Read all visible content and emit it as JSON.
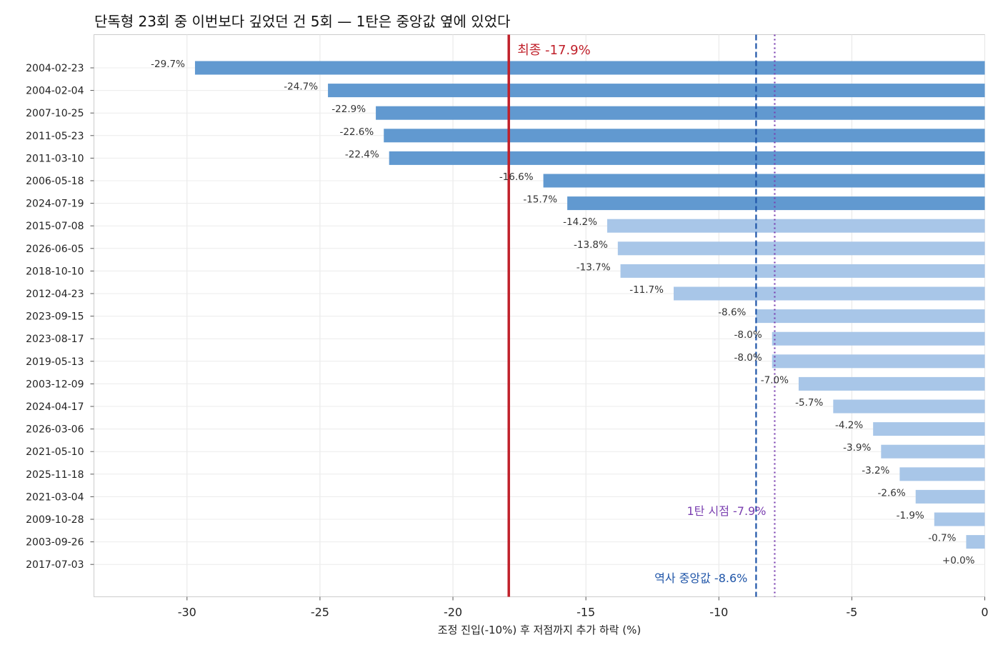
{
  "chart_data": {
    "type": "bar",
    "orientation": "horizontal",
    "title": "단독형 23회 중 이번보다 깊었던 건 5회 — 1탄은 중앙값 옆에 있었다",
    "xlabel": "조정 진입(-10%) 후 저점까지 추가 하락 (%)",
    "ylabel": "",
    "xlim": [
      -33.5,
      0
    ],
    "xticks": [
      -30,
      -25,
      -20,
      -15,
      -10,
      -5,
      0
    ],
    "xtick_labels": [
      "-30",
      "-25",
      "-20",
      "-15",
      "-10",
      "-5",
      "0"
    ],
    "grid": true,
    "categories": [
      "2004-02-23",
      "2004-02-04",
      "2007-10-25",
      "2011-05-23",
      "2011-03-10",
      "2006-05-18",
      "2024-07-19",
      "2015-07-08",
      "2026-06-05",
      "2018-10-10",
      "2012-04-23",
      "2023-09-15",
      "2023-08-17",
      "2019-05-13",
      "2003-12-09",
      "2024-04-17",
      "2026-03-06",
      "2021-05-10",
      "2025-11-18",
      "2021-03-04",
      "2009-10-28",
      "2003-09-26",
      "2017-07-03"
    ],
    "values": [
      -29.7,
      -24.7,
      -22.9,
      -22.6,
      -22.4,
      -16.6,
      -15.7,
      -14.2,
      -13.8,
      -13.7,
      -11.7,
      -8.6,
      -8.0,
      -8.0,
      -7.0,
      -5.7,
      -4.2,
      -3.9,
      -3.2,
      -2.6,
      -1.9,
      -0.7,
      0.0
    ],
    "value_labels": [
      "-29.7%",
      "-24.7%",
      "-22.9%",
      "-22.6%",
      "-22.4%",
      "-16.6%",
      "-15.7%",
      "-14.2%",
      "-13.8%",
      "-13.7%",
      "-11.7%",
      "-8.6%",
      "-8.0%",
      "-8.0%",
      "-7.0%",
      "-5.7%",
      "-4.2%",
      "-3.9%",
      "-3.2%",
      "-2.6%",
      "-1.9%",
      "-0.7%",
      "+0.0%"
    ],
    "bar_colors": {
      "deeper": "#6199d0",
      "shallower": "#a8c6e8"
    },
    "reference_lines": [
      {
        "value": -17.9,
        "label": "최종 -17.9%",
        "style": "solid",
        "color": "#c0202a"
      },
      {
        "value": -8.6,
        "label": "역사 중앙값 -8.6%",
        "style": "dashed",
        "color": "#1f55a8"
      },
      {
        "value": -7.9,
        "label": "1탄 시점 -7.9%",
        "style": "dotted",
        "color": "#7a3fb0"
      }
    ]
  }
}
